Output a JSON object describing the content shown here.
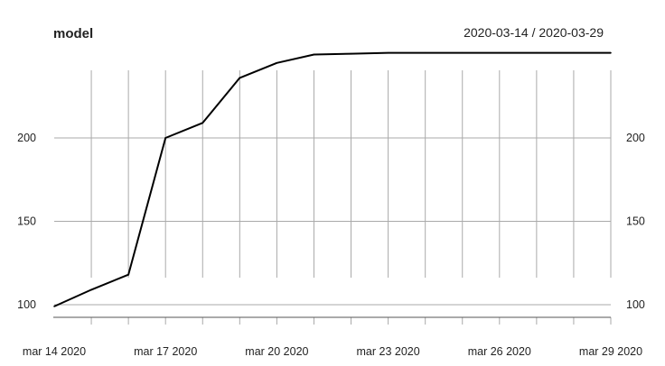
{
  "chart_data": {
    "type": "line",
    "title": "model",
    "date_range_label": "2020-03-14 / 2020-03-29",
    "x": [
      "2020-03-14",
      "2020-03-15",
      "2020-03-16",
      "2020-03-17",
      "2020-03-18",
      "2020-03-19",
      "2020-03-20",
      "2020-03-21",
      "2020-03-22",
      "2020-03-23",
      "2020-03-24",
      "2020-03-25",
      "2020-03-26",
      "2020-03-27",
      "2020-03-28",
      "2020-03-29"
    ],
    "series": [
      {
        "values": [
          99,
          109,
          118,
          200,
          209,
          236,
          245,
          250,
          250.5,
          251,
          251,
          251,
          251,
          251,
          251,
          251
        ]
      }
    ],
    "x_tick_labels": [
      "mar 14 2020",
      "mar 17 2020",
      "mar 20 2020",
      "mar 23 2020",
      "mar 26 2020",
      "mar 29 2020"
    ],
    "x_tick_label_dates": [
      "2020-03-14",
      "2020-03-17",
      "2020-03-20",
      "2020-03-23",
      "2020-03-26",
      "2020-03-29"
    ],
    "y_ticks": [
      100,
      150,
      200
    ],
    "ylim": [
      98,
      251
    ],
    "grid": true,
    "line_color": "#000000",
    "grid_color": "#aaaaaa"
  }
}
